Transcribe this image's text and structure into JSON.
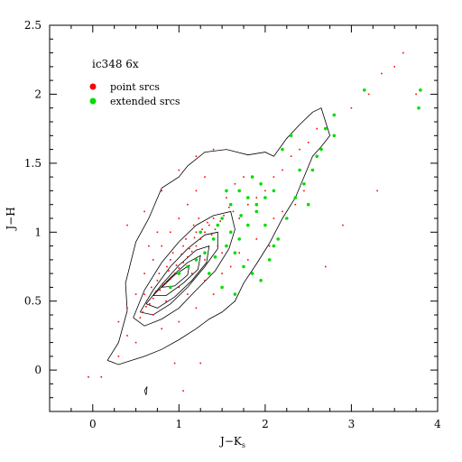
{
  "chart_data": {
    "type": "scatter",
    "annotation": "ic348 6x",
    "xlabel_main": "J−K",
    "xlabel_sub": "s",
    "ylabel": "J−H",
    "xlim": [
      -0.5,
      4.0
    ],
    "ylim": [
      -0.3,
      2.5
    ],
    "xticks": [
      0,
      1,
      2,
      3,
      4
    ],
    "xtick_labels": [
      "0",
      "1",
      "2",
      "3",
      "4"
    ],
    "yticks": [
      0,
      0.5,
      1,
      1.5,
      2,
      2.5
    ],
    "ytick_labels": [
      "0",
      "0.5",
      "1",
      "1.5",
      "2",
      "2.5"
    ],
    "grid": false,
    "legend_placement": "top-left",
    "colors": {
      "point": "#ff0000",
      "extended": "#00dd00",
      "contour": "#000000"
    },
    "series": [
      {
        "name": "point srcs",
        "marker": "dot",
        "points": [
          [
            0.55,
            0.38
          ],
          [
            0.62,
            0.46
          ],
          [
            0.7,
            0.52
          ],
          [
            0.78,
            0.58
          ],
          [
            0.85,
            0.63
          ],
          [
            0.9,
            0.66
          ],
          [
            0.95,
            0.7
          ],
          [
            1.0,
            0.74
          ],
          [
            1.05,
            0.78
          ],
          [
            1.1,
            0.82
          ],
          [
            1.15,
            0.86
          ],
          [
            1.2,
            0.9
          ],
          [
            1.25,
            0.95
          ],
          [
            1.3,
            1.0
          ],
          [
            1.35,
            1.05
          ],
          [
            1.4,
            1.1
          ],
          [
            0.6,
            0.55
          ],
          [
            0.75,
            0.65
          ],
          [
            0.9,
            0.8
          ],
          [
            1.05,
            0.9
          ],
          [
            1.2,
            1.0
          ],
          [
            0.7,
            0.4
          ],
          [
            0.85,
            0.5
          ],
          [
            1.0,
            0.6
          ],
          [
            1.15,
            0.7
          ],
          [
            1.3,
            0.8
          ],
          [
            1.45,
            0.9
          ],
          [
            1.6,
            1.0
          ],
          [
            1.7,
            1.1
          ],
          [
            1.8,
            1.2
          ],
          [
            1.9,
            1.25
          ],
          [
            2.0,
            1.3
          ],
          [
            2.1,
            1.4
          ],
          [
            2.2,
            1.45
          ],
          [
            2.3,
            1.55
          ],
          [
            2.4,
            1.6
          ],
          [
            2.5,
            1.65
          ],
          [
            2.6,
            1.75
          ],
          [
            1.5,
            0.7
          ],
          [
            1.6,
            0.75
          ],
          [
            1.7,
            0.85
          ],
          [
            1.8,
            0.8
          ],
          [
            1.9,
            0.95
          ],
          [
            2.0,
            1.05
          ],
          [
            2.1,
            1.1
          ],
          [
            2.2,
            1.15
          ],
          [
            0.4,
            0.45
          ],
          [
            0.5,
            0.55
          ],
          [
            0.6,
            0.7
          ],
          [
            0.7,
            0.8
          ],
          [
            0.8,
            0.9
          ],
          [
            0.9,
            1.0
          ],
          [
            1.0,
            1.1
          ],
          [
            1.1,
            1.2
          ],
          [
            1.2,
            1.3
          ],
          [
            1.3,
            1.4
          ],
          [
            0.5,
            0.2
          ],
          [
            0.8,
            0.3
          ],
          [
            1.0,
            0.35
          ],
          [
            1.2,
            0.45
          ],
          [
            1.4,
            0.55
          ],
          [
            0.3,
            0.1
          ],
          [
            0.95,
            0.05
          ],
          [
            1.25,
            0.05
          ],
          [
            0.4,
            1.05
          ],
          [
            0.6,
            1.15
          ],
          [
            0.8,
            1.3
          ],
          [
            1.0,
            1.45
          ],
          [
            1.2,
            1.55
          ],
          [
            1.4,
            1.6
          ],
          [
            2.8,
            1.7
          ],
          [
            3.0,
            1.9
          ],
          [
            3.2,
            2.0
          ],
          [
            3.35,
            2.15
          ],
          [
            3.5,
            2.2
          ],
          [
            2.7,
            0.75
          ],
          [
            2.9,
            1.05
          ],
          [
            3.3,
            1.3
          ],
          [
            3.6,
            2.3
          ],
          [
            3.75,
            2.0
          ],
          [
            0.1,
            -0.05
          ],
          [
            -0.05,
            -0.05
          ],
          [
            1.05,
            -0.15
          ],
          [
            0.3,
            0.35
          ],
          [
            0.4,
            0.25
          ],
          [
            0.65,
            0.9
          ],
          [
            0.75,
            1.0
          ],
          [
            1.55,
            1.25
          ],
          [
            1.65,
            1.35
          ],
          [
            1.75,
            1.4
          ],
          [
            2.05,
            0.9
          ],
          [
            2.35,
            1.2
          ],
          [
            2.45,
            1.3
          ],
          [
            1.1,
            0.55
          ],
          [
            1.3,
            0.65
          ],
          [
            1.5,
            0.85
          ],
          [
            0.58,
            0.42
          ],
          [
            0.66,
            0.48
          ],
          [
            0.73,
            0.57
          ],
          [
            0.82,
            0.62
          ],
          [
            0.88,
            0.72
          ],
          [
            0.97,
            0.76
          ],
          [
            1.03,
            0.84
          ],
          [
            1.12,
            0.88
          ],
          [
            1.18,
            0.96
          ],
          [
            1.27,
            1.02
          ],
          [
            1.33,
            1.07
          ],
          [
            1.38,
            0.98
          ],
          [
            1.42,
            1.02
          ],
          [
            1.48,
            1.08
          ],
          [
            1.52,
            1.12
          ],
          [
            1.58,
            1.18
          ],
          [
            1.63,
            1.15
          ],
          [
            0.68,
            0.6
          ],
          [
            0.77,
            0.7
          ],
          [
            0.86,
            0.75
          ],
          [
            0.93,
            0.85
          ],
          [
            1.08,
            0.95
          ],
          [
            1.17,
            1.05
          ],
          [
            1.23,
            1.1
          ]
        ]
      },
      {
        "name": "extended srcs",
        "marker": "circle",
        "points": [
          [
            1.5,
            1.1
          ],
          [
            1.6,
            1.2
          ],
          [
            1.7,
            1.3
          ],
          [
            1.8,
            1.25
          ],
          [
            1.9,
            1.15
          ],
          [
            2.0,
            1.05
          ],
          [
            1.4,
            0.95
          ],
          [
            1.55,
            0.9
          ],
          [
            1.65,
            0.85
          ],
          [
            1.75,
            0.75
          ],
          [
            1.85,
            0.7
          ],
          [
            1.95,
            0.65
          ],
          [
            2.05,
            0.8
          ],
          [
            2.15,
            0.95
          ],
          [
            2.25,
            1.1
          ],
          [
            2.35,
            1.25
          ],
          [
            2.45,
            1.35
          ],
          [
            2.55,
            1.45
          ],
          [
            2.65,
            1.6
          ],
          [
            2.7,
            1.75
          ],
          [
            2.8,
            1.7
          ],
          [
            2.8,
            1.85
          ],
          [
            1.2,
            0.8
          ],
          [
            1.3,
            0.85
          ],
          [
            1.45,
            1.05
          ],
          [
            1.6,
            1.0
          ],
          [
            1.7,
            0.95
          ],
          [
            1.8,
            1.05
          ],
          [
            1.9,
            1.2
          ],
          [
            2.0,
            1.25
          ],
          [
            2.1,
            1.3
          ],
          [
            1.35,
            0.7
          ],
          [
            1.5,
            0.6
          ],
          [
            1.65,
            0.55
          ],
          [
            1.0,
            0.7
          ],
          [
            1.1,
            0.75
          ],
          [
            0.9,
            0.6
          ],
          [
            2.2,
            1.6
          ],
          [
            2.3,
            1.7
          ],
          [
            3.15,
            2.03
          ],
          [
            3.8,
            2.03
          ],
          [
            3.78,
            1.9
          ],
          [
            2.4,
            1.45
          ],
          [
            2.6,
            1.55
          ],
          [
            1.25,
            1.0
          ],
          [
            1.55,
            1.3
          ],
          [
            2.1,
            0.9
          ],
          [
            2.5,
            1.2
          ],
          [
            1.85,
            1.4
          ],
          [
            1.95,
            1.35
          ],
          [
            1.42,
            0.82
          ],
          [
            1.72,
            1.12
          ]
        ]
      }
    ],
    "contours": [
      [
        [
          0.17,
          0.07
        ],
        [
          0.3,
          0.2
        ],
        [
          0.4,
          0.43
        ],
        [
          0.38,
          0.63
        ],
        [
          0.5,
          0.93
        ],
        [
          0.65,
          1.1
        ],
        [
          0.8,
          1.32
        ],
        [
          1.0,
          1.4
        ],
        [
          1.1,
          1.48
        ],
        [
          1.3,
          1.58
        ],
        [
          1.55,
          1.6
        ],
        [
          1.8,
          1.56
        ],
        [
          2.0,
          1.58
        ],
        [
          2.1,
          1.55
        ],
        [
          2.25,
          1.68
        ],
        [
          2.4,
          1.78
        ],
        [
          2.55,
          1.87
        ],
        [
          2.65,
          1.9
        ],
        [
          2.7,
          1.8
        ],
        [
          2.75,
          1.7
        ],
        [
          2.65,
          1.62
        ],
        [
          2.55,
          1.55
        ],
        [
          2.45,
          1.4
        ],
        [
          2.35,
          1.25
        ],
        [
          2.2,
          1.1
        ],
        [
          2.05,
          0.92
        ],
        [
          1.9,
          0.77
        ],
        [
          1.75,
          0.63
        ],
        [
          1.65,
          0.5
        ],
        [
          1.5,
          0.42
        ],
        [
          1.35,
          0.37
        ],
        [
          1.2,
          0.3
        ],
        [
          1.0,
          0.22
        ],
        [
          0.8,
          0.15
        ],
        [
          0.6,
          0.1
        ],
        [
          0.45,
          0.07
        ],
        [
          0.3,
          0.04
        ],
        [
          0.17,
          0.07
        ]
      ],
      [
        [
          0.47,
          0.38
        ],
        [
          0.6,
          0.58
        ],
        [
          0.8,
          0.78
        ],
        [
          1.0,
          0.93
        ],
        [
          1.2,
          1.05
        ],
        [
          1.4,
          1.12
        ],
        [
          1.6,
          1.15
        ],
        [
          1.65,
          1.02
        ],
        [
          1.58,
          0.88
        ],
        [
          1.42,
          0.72
        ],
        [
          1.2,
          0.58
        ],
        [
          1.0,
          0.45
        ],
        [
          0.8,
          0.37
        ],
        [
          0.6,
          0.32
        ],
        [
          0.47,
          0.38
        ]
      ],
      [
        [
          0.55,
          0.42
        ],
        [
          0.7,
          0.58
        ],
        [
          0.9,
          0.75
        ],
        [
          1.1,
          0.88
        ],
        [
          1.3,
          0.98
        ],
        [
          1.45,
          1.0
        ],
        [
          1.45,
          0.88
        ],
        [
          1.3,
          0.75
        ],
        [
          1.1,
          0.6
        ],
        [
          0.9,
          0.48
        ],
        [
          0.7,
          0.4
        ],
        [
          0.55,
          0.42
        ]
      ],
      [
        [
          0.62,
          0.48
        ],
        [
          0.8,
          0.62
        ],
        [
          1.0,
          0.76
        ],
        [
          1.2,
          0.87
        ],
        [
          1.35,
          0.9
        ],
        [
          1.32,
          0.78
        ],
        [
          1.15,
          0.65
        ],
        [
          0.95,
          0.53
        ],
        [
          0.75,
          0.45
        ],
        [
          0.62,
          0.48
        ]
      ],
      [
        [
          0.7,
          0.54
        ],
        [
          0.9,
          0.67
        ],
        [
          1.1,
          0.78
        ],
        [
          1.25,
          0.83
        ],
        [
          1.22,
          0.73
        ],
        [
          1.05,
          0.63
        ],
        [
          0.85,
          0.54
        ],
        [
          0.7,
          0.54
        ]
      ],
      [
        [
          0.8,
          0.6
        ],
        [
          0.95,
          0.69
        ],
        [
          1.12,
          0.76
        ],
        [
          1.1,
          0.69
        ],
        [
          0.95,
          0.61
        ],
        [
          0.8,
          0.6
        ]
      ],
      [
        [
          0.6,
          -0.15
        ],
        [
          0.63,
          -0.12
        ],
        [
          0.62,
          -0.18
        ],
        [
          0.6,
          -0.15
        ]
      ]
    ]
  }
}
